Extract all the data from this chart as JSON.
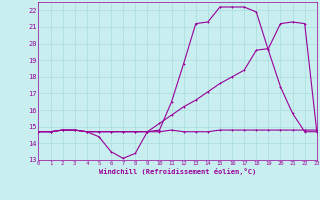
{
  "xlabel": "Windchill (Refroidissement éolien,°C)",
  "bg_color": "#c8eef0",
  "grid_color": "#aadddd",
  "line_color": "#990099",
  "xmin": 0,
  "xmax": 23,
  "ymin": 13,
  "ymax": 22.5,
  "yticks": [
    13,
    14,
    15,
    16,
    17,
    18,
    19,
    20,
    21,
    22
  ],
  "xticks": [
    0,
    1,
    2,
    3,
    4,
    5,
    6,
    7,
    8,
    9,
    10,
    11,
    12,
    13,
    14,
    15,
    16,
    17,
    18,
    19,
    20,
    21,
    22,
    23
  ],
  "series1_x": [
    0,
    1,
    2,
    3,
    4,
    5,
    6,
    7,
    8,
    9,
    10,
    11,
    12,
    13,
    14,
    15,
    16,
    17,
    18,
    19,
    20,
    21,
    22,
    23
  ],
  "series1_y": [
    14.7,
    14.7,
    14.8,
    14.8,
    14.7,
    14.7,
    14.7,
    14.7,
    14.7,
    14.7,
    14.7,
    14.8,
    14.7,
    14.7,
    14.7,
    14.8,
    14.8,
    14.8,
    14.8,
    14.8,
    14.8,
    14.8,
    14.8,
    14.8
  ],
  "series2_x": [
    0,
    1,
    2,
    3,
    4,
    5,
    6,
    7,
    8,
    9,
    10,
    11,
    12,
    13,
    14,
    15,
    16,
    17,
    18,
    19,
    20,
    21,
    22,
    23
  ],
  "series2_y": [
    14.7,
    14.7,
    14.8,
    14.8,
    14.7,
    14.4,
    13.5,
    13.1,
    13.4,
    14.7,
    14.8,
    16.5,
    18.8,
    21.2,
    21.3,
    22.2,
    22.2,
    22.2,
    21.9,
    19.6,
    17.4,
    15.8,
    14.7,
    14.7
  ],
  "series3_x": [
    0,
    1,
    2,
    3,
    4,
    5,
    6,
    7,
    8,
    9,
    10,
    11,
    12,
    13,
    14,
    15,
    16,
    17,
    18,
    19,
    20,
    21,
    22,
    23
  ],
  "series3_y": [
    14.7,
    14.7,
    14.8,
    14.8,
    14.7,
    14.7,
    14.7,
    14.7,
    14.7,
    14.7,
    15.2,
    15.7,
    16.2,
    16.6,
    17.1,
    17.6,
    18.0,
    18.4,
    19.6,
    19.7,
    21.2,
    21.3,
    21.2,
    14.7
  ],
  "markersize": 2.0,
  "linewidth": 0.8
}
